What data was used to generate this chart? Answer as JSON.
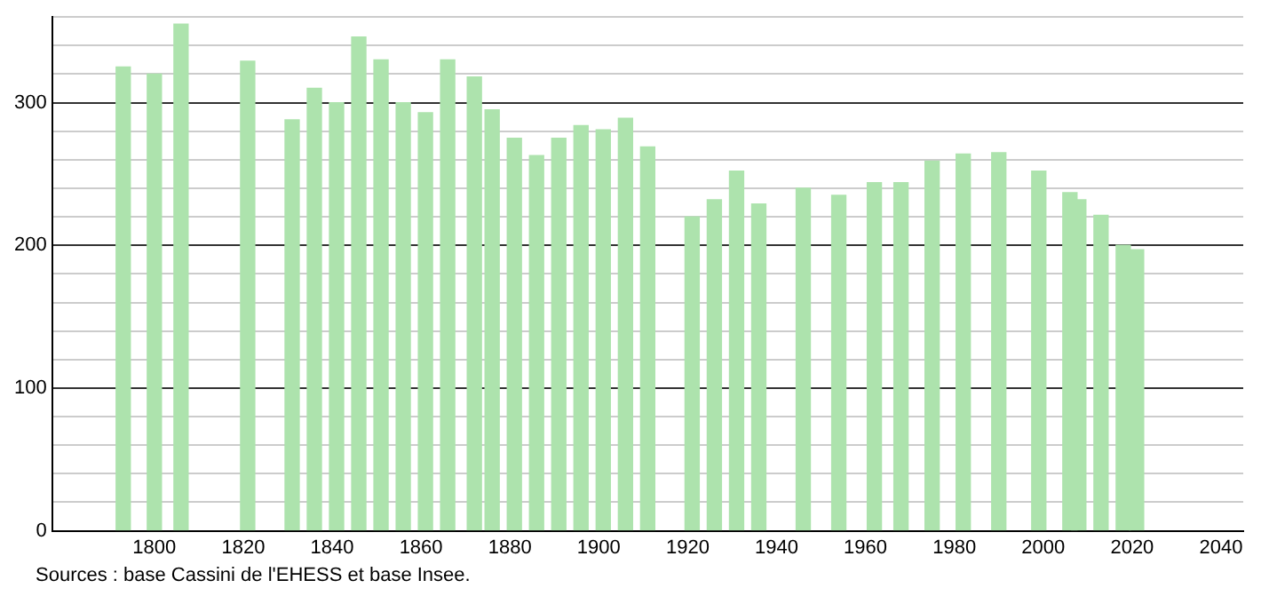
{
  "chart_data": {
    "type": "bar",
    "color": "#ade3ad",
    "x": [
      1793,
      1800,
      1806,
      1821,
      1831,
      1836,
      1841,
      1846,
      1851,
      1856,
      1861,
      1866,
      1872,
      1876,
      1881,
      1886,
      1891,
      1896,
      1901,
      1906,
      1911,
      1921,
      1926,
      1931,
      1936,
      1946,
      1954,
      1962,
      1968,
      1975,
      1982,
      1990,
      1999,
      2006,
      2008,
      2013,
      2018,
      2021
    ],
    "values": [
      325,
      320,
      355,
      329,
      288,
      310,
      300,
      346,
      330,
      300,
      293,
      330,
      318,
      295,
      275,
      263,
      275,
      284,
      281,
      289,
      269,
      220,
      232,
      252,
      229,
      240,
      235,
      244,
      244,
      259,
      264,
      265,
      252,
      237,
      232,
      221,
      200,
      197
    ],
    "xlim": [
      1777,
      2045
    ],
    "xticks": [
      1800,
      1820,
      1840,
      1860,
      1880,
      1900,
      1920,
      1940,
      1960,
      1980,
      2000,
      2020,
      2040
    ],
    "ylim": [
      0,
      360
    ],
    "yticks": [
      0,
      {
        "value": 20,
        "label": null
      },
      {
        "value": 40,
        "label": null
      },
      {
        "value": 60,
        "label": null
      },
      {
        "value": 80,
        "label": null
      },
      100,
      {
        "value": 120,
        "label": null
      },
      {
        "value": 140,
        "label": null
      },
      {
        "value": 160,
        "label": null
      },
      {
        "value": 180,
        "label": null
      },
      200,
      {
        "value": 220,
        "label": null
      },
      {
        "value": 240,
        "label": null
      },
      {
        "value": 260,
        "label": null
      },
      {
        "value": 280,
        "label": null
      },
      300,
      {
        "value": 320,
        "label": null
      },
      {
        "value": 340,
        "label": null
      },
      {
        "value": 360,
        "label": null
      }
    ],
    "grid": "y",
    "legend": false,
    "annotations": [
      "Sources : base Cassini de l'EHESS et base Insee."
    ]
  }
}
